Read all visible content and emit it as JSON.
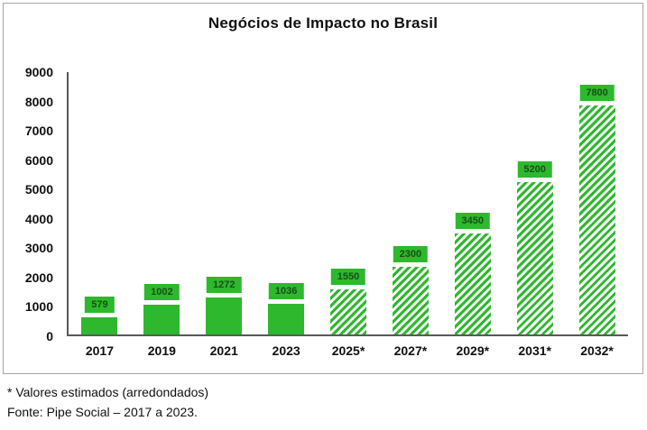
{
  "figure": {
    "title": "Negócios de Impacto no Brasil",
    "footnote_estimated": "* Valores estimados (arredondados)",
    "footnote_source": "Fonte: Pipe Social – 2017 a 2023."
  },
  "chart_data": {
    "type": "bar",
    "title": "Negócios de Impacto no Brasil",
    "categories": [
      "2017",
      "2019",
      "2021",
      "2023",
      "2025*",
      "2027*",
      "2029*",
      "2031*",
      "2032*"
    ],
    "values": [
      579,
      1002,
      1272,
      1036,
      1550,
      2300,
      3450,
      5200,
      7800
    ],
    "estimated_flags": [
      false,
      false,
      false,
      false,
      true,
      true,
      true,
      true,
      true
    ],
    "estimated_note": "* Valores estimados (arredondados)",
    "source": "Fonte: Pipe Social – 2017 a 2023.",
    "xlabel": "",
    "ylabel": "",
    "ylim": [
      0,
      9000
    ],
    "ytick_step": 1000,
    "grid": false,
    "legend": "none",
    "hatch_style": "diagonal-stripes-on-estimated-bars",
    "colors": {
      "bar_green": "#2eb82e",
      "label_box_green": "#2eb82e",
      "label_text": "#175017",
      "axis": "#595959"
    }
  }
}
